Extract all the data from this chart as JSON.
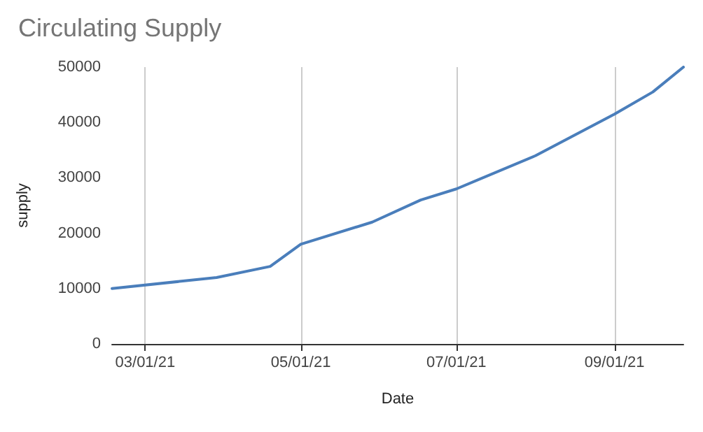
{
  "chart_data": {
    "type": "line",
    "title": "Circulating Supply",
    "xlabel": "Date",
    "ylabel": "supply",
    "x": [
      "2021-02-16",
      "2021-03-29",
      "2021-04-19",
      "2021-05-01",
      "2021-05-29",
      "2021-06-17",
      "2021-07-01",
      "2021-08-01",
      "2021-09-01",
      "2021-09-16",
      "2021-09-28"
    ],
    "series": [
      {
        "color": "#4a7ebb",
        "values": [
          10000,
          12000,
          14000,
          18000,
          22000,
          26000,
          28000,
          34000,
          41500,
          45500,
          50000
        ]
      }
    ],
    "xlim": [
      "2021-02-16",
      "2021-09-28"
    ],
    "xticks": [
      {
        "value": "2021-03-01",
        "label": "03/01/21"
      },
      {
        "value": "2021-05-01",
        "label": "05/01/21"
      },
      {
        "value": "2021-07-01",
        "label": "07/01/21"
      },
      {
        "value": "2021-09-01",
        "label": "09/01/21"
      }
    ],
    "ylim": [
      0,
      50000
    ],
    "yticks": [
      0,
      10000,
      20000,
      30000,
      40000,
      50000
    ],
    "grid": "x",
    "marker": "none",
    "line_style": "solid"
  }
}
